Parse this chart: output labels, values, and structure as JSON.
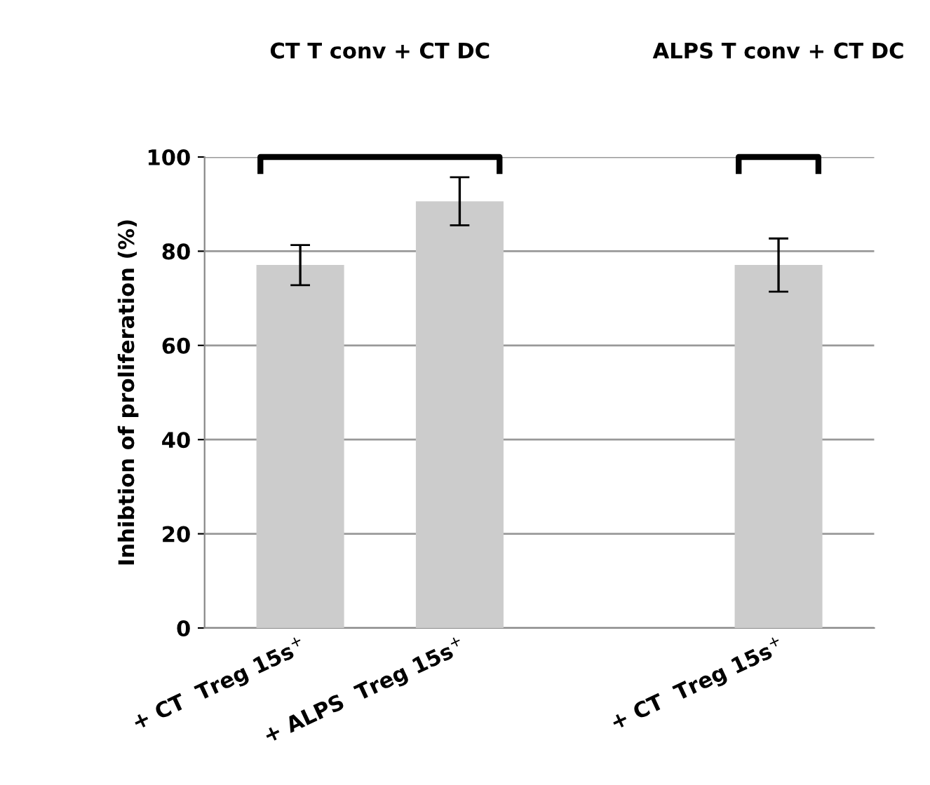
{
  "chart_data": {
    "type": "bar",
    "categories": [
      "+ CT  Treg 15s$^{+}$",
      "+ ALPS  Treg 15s$^{+}$",
      null,
      "+ CT  Treg 15s$^{+}$"
    ],
    "values": [
      77.1,
      90.6,
      null,
      77.1
    ],
    "errors": [
      [
        72.8,
        81.3
      ],
      [
        85.5,
        95.7
      ],
      null,
      [
        71.4,
        82.7
      ]
    ],
    "color": "#cccccc",
    "ylabel": "Inhibtion of proliferation (%)",
    "ylim": [
      0,
      100
    ],
    "yticks": [
      0,
      20,
      40,
      60,
      80,
      100
    ],
    "grid": "y",
    "annotations": [
      "CT T conv + CT DC",
      "ALPS T conv + CT DC"
    ]
  }
}
